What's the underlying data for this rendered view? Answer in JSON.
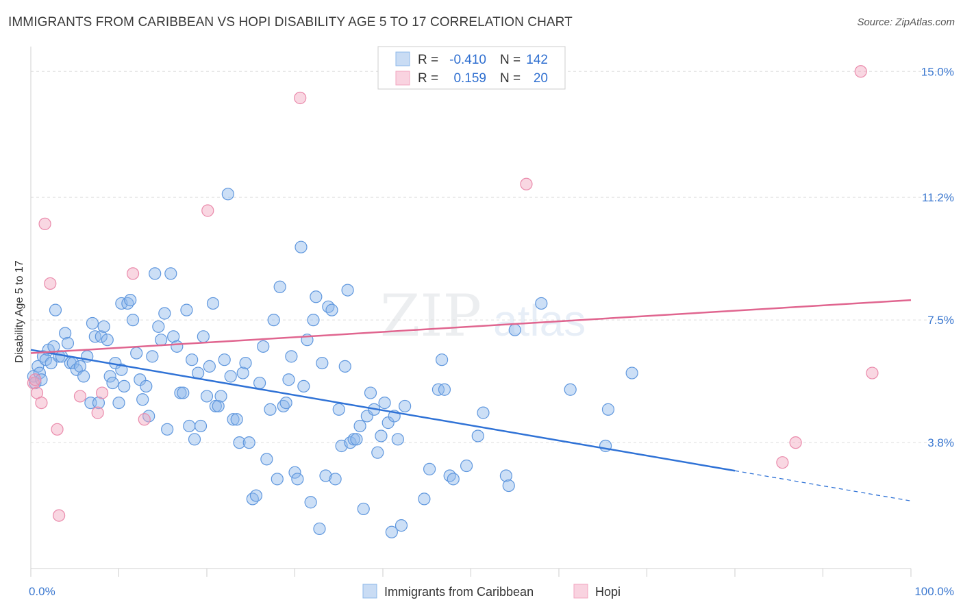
{
  "header": {
    "title": "IMMIGRANTS FROM CARIBBEAN VS HOPI DISABILITY AGE 5 TO 17 CORRELATION CHART",
    "source": "Source: ZipAtlas.com"
  },
  "colors": {
    "blue": "#8db8ea",
    "blue_line": "#2f72d6",
    "pink": "#f2a6bf",
    "pink_line": "#e0658f",
    "tick_blue": "#3b78d0"
  },
  "legend": {
    "rows": [
      {
        "r_label": "R = ",
        "r_value": "-0.410",
        "n_label": "N = ",
        "n_value": "142"
      },
      {
        "r_label": "R = ",
        "r_value": "0.159",
        "n_label": "N = ",
        "n_value": "20"
      }
    ]
  },
  "bottom_legend": {
    "series1": "Immigrants from Caribbean",
    "series2": "Hopi"
  },
  "watermark": {
    "zip": "ZIP",
    "atlas": "atlas"
  },
  "chart_data": {
    "type": "scatter",
    "title": "IMMIGRANTS FROM CARIBBEAN VS HOPI DISABILITY AGE 5 TO 17 CORRELATION CHART",
    "xlabel": "",
    "ylabel": "Disability Age 5 to 17",
    "xlim": [
      0,
      100
    ],
    "ylim": [
      0,
      15.75
    ],
    "x_tick_labels": [
      "0.0%",
      "100.0%"
    ],
    "y_ticks": [
      3.8,
      7.5,
      11.2,
      15.0
    ],
    "y_tick_labels": [
      "3.8%",
      "7.5%",
      "11.2%",
      "15.0%"
    ],
    "grid": "horizontal dashed",
    "legend_position": "top-center",
    "series": [
      {
        "name": "Immigrants from Caribbean",
        "color": "#8db8ea",
        "trend": {
          "x": [
            0,
            80
          ],
          "y": [
            6.6,
            2.95
          ],
          "dashed_to": [
            100,
            2.04
          ]
        },
        "points": [
          [
            0.3,
            5.8
          ],
          [
            0.5,
            5.6
          ],
          [
            0.8,
            6.1
          ],
          [
            1,
            5.9
          ],
          [
            1.2,
            5.7
          ],
          [
            1.4,
            6.4
          ],
          [
            1.7,
            6.3
          ],
          [
            2,
            6.6
          ],
          [
            2.3,
            6.2
          ],
          [
            2.6,
            6.7
          ],
          [
            2.8,
            7.8
          ],
          [
            3.2,
            6.4
          ],
          [
            3.5,
            6.4
          ],
          [
            3.9,
            7.1
          ],
          [
            4.2,
            6.8
          ],
          [
            4.5,
            6.2
          ],
          [
            4.8,
            6.2
          ],
          [
            5.2,
            6.0
          ],
          [
            5.6,
            6.1
          ],
          [
            6,
            5.8
          ],
          [
            6.4,
            6.4
          ],
          [
            6.8,
            5.0
          ],
          [
            7,
            7.4
          ],
          [
            7.3,
            7.0
          ],
          [
            7.7,
            5.0
          ],
          [
            8,
            7.0
          ],
          [
            8.3,
            7.3
          ],
          [
            8.7,
            6.9
          ],
          [
            9,
            5.8
          ],
          [
            9.3,
            5.6
          ],
          [
            9.6,
            6.2
          ],
          [
            10,
            5.0
          ],
          [
            10.3,
            6.0
          ],
          [
            10.6,
            5.5
          ],
          [
            10.3,
            8.0
          ],
          [
            11,
            8.0
          ],
          [
            11.3,
            8.1
          ],
          [
            11.6,
            7.5
          ],
          [
            12,
            6.5
          ],
          [
            12.4,
            5.7
          ],
          [
            12.7,
            5.1
          ],
          [
            13.1,
            5.5
          ],
          [
            13.4,
            4.6
          ],
          [
            13.8,
            6.4
          ],
          [
            14.1,
            8.9
          ],
          [
            14.5,
            7.3
          ],
          [
            14.8,
            6.9
          ],
          [
            15.2,
            7.7
          ],
          [
            15.5,
            4.2
          ],
          [
            15.9,
            8.9
          ],
          [
            16.2,
            7.0
          ],
          [
            16.6,
            6.7
          ],
          [
            17,
            5.3
          ],
          [
            17.3,
            5.3
          ],
          [
            17.7,
            7.8
          ],
          [
            18,
            4.3
          ],
          [
            18.3,
            6.3
          ],
          [
            18.6,
            3.9
          ],
          [
            19,
            5.9
          ],
          [
            19.3,
            4.3
          ],
          [
            19.6,
            7.0
          ],
          [
            20,
            5.2
          ],
          [
            20.3,
            6.1
          ],
          [
            20.7,
            8.0
          ],
          [
            21,
            4.9
          ],
          [
            21.3,
            4.9
          ],
          [
            21.6,
            5.2
          ],
          [
            22,
            6.3
          ],
          [
            22.4,
            11.3
          ],
          [
            22.7,
            5.8
          ],
          [
            23,
            4.5
          ],
          [
            23.4,
            4.5
          ],
          [
            23.7,
            3.8
          ],
          [
            24.1,
            5.9
          ],
          [
            24.4,
            6.2
          ],
          [
            24.8,
            3.8
          ],
          [
            25.2,
            2.1
          ],
          [
            25.6,
            2.2
          ],
          [
            26,
            5.6
          ],
          [
            26.4,
            6.7
          ],
          [
            26.8,
            3.3
          ],
          [
            27.2,
            4.8
          ],
          [
            27.6,
            7.5
          ],
          [
            28,
            2.7
          ],
          [
            28.3,
            8.5
          ],
          [
            28.7,
            4.9
          ],
          [
            29,
            5.0
          ],
          [
            29.3,
            5.7
          ],
          [
            29.6,
            6.4
          ],
          [
            30,
            2.9
          ],
          [
            30.3,
            2.7
          ],
          [
            30.7,
            9.7
          ],
          [
            31,
            5.5
          ],
          [
            31.4,
            6.9
          ],
          [
            31.8,
            2.0
          ],
          [
            32.1,
            7.5
          ],
          [
            32.4,
            8.2
          ],
          [
            32.8,
            1.2
          ],
          [
            33.1,
            6.2
          ],
          [
            33.5,
            2.8
          ],
          [
            33.8,
            7.9
          ],
          [
            34.2,
            7.8
          ],
          [
            34.6,
            2.7
          ],
          [
            35,
            4.8
          ],
          [
            35.3,
            3.7
          ],
          [
            35.7,
            6.1
          ],
          [
            36,
            8.4
          ],
          [
            36.3,
            3.8
          ],
          [
            36.7,
            3.9
          ],
          [
            37,
            3.9
          ],
          [
            37.4,
            4.3
          ],
          [
            37.8,
            1.8
          ],
          [
            38.2,
            4.6
          ],
          [
            38.6,
            5.3
          ],
          [
            39,
            4.8
          ],
          [
            39.4,
            3.5
          ],
          [
            39.8,
            4.0
          ],
          [
            40.2,
            5.0
          ],
          [
            40.6,
            4.4
          ],
          [
            41,
            1.1
          ],
          [
            41.3,
            4.6
          ],
          [
            41.7,
            3.9
          ],
          [
            42.1,
            1.3
          ],
          [
            42.5,
            4.9
          ],
          [
            44.7,
            2.1
          ],
          [
            45.3,
            3.0
          ],
          [
            46.3,
            5.4
          ],
          [
            46.7,
            6.3
          ],
          [
            47,
            5.4
          ],
          [
            47.6,
            2.8
          ],
          [
            48,
            2.7
          ],
          [
            49.5,
            3.1
          ],
          [
            50.8,
            4.0
          ],
          [
            51.4,
            4.7
          ],
          [
            54,
            2.8
          ],
          [
            54.3,
            2.5
          ],
          [
            55,
            7.2
          ],
          [
            58,
            8.0
          ],
          [
            61.3,
            5.4
          ],
          [
            65.3,
            3.7
          ],
          [
            65.6,
            4.8
          ],
          [
            68.3,
            5.9
          ]
        ]
      },
      {
        "name": "Hopi",
        "color": "#f2a6bf",
        "trend": {
          "x": [
            0,
            100
          ],
          "y": [
            6.5,
            8.1
          ]
        },
        "points": [
          [
            0.3,
            5.6
          ],
          [
            0.5,
            5.7
          ],
          [
            0.7,
            5.3
          ],
          [
            1.2,
            5.0
          ],
          [
            1.6,
            10.4
          ],
          [
            2.2,
            8.6
          ],
          [
            3,
            4.2
          ],
          [
            3.2,
            1.6
          ],
          [
            5.6,
            5.2
          ],
          [
            7.6,
            4.7
          ],
          [
            8.1,
            5.3
          ],
          [
            11.6,
            8.9
          ],
          [
            12.9,
            4.5
          ],
          [
            20.1,
            10.8
          ],
          [
            30.6,
            14.2
          ],
          [
            56.3,
            11.6
          ],
          [
            85.4,
            3.2
          ],
          [
            86.9,
            3.8
          ],
          [
            94.3,
            15.0
          ],
          [
            95.6,
            5.9
          ]
        ]
      }
    ]
  }
}
